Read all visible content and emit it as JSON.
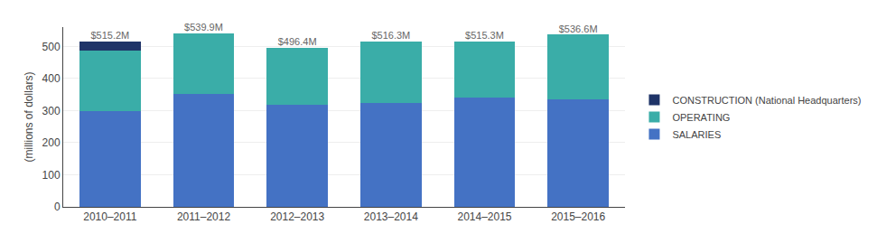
{
  "chart_data": {
    "type": "bar",
    "stacked": true,
    "categories": [
      "2010–2011",
      "2011–2012",
      "2012–2013",
      "2013–2014",
      "2014–2015",
      "2015–2016"
    ],
    "series": [
      {
        "name": "SALARIES",
        "color": "#4472C4",
        "values": [
          297.0,
          353.0,
          318.0,
          323.0,
          341.0,
          336.0
        ]
      },
      {
        "name": "OPERATING",
        "color": "#3AADA8",
        "values": [
          190.2,
          186.9,
          178.4,
          193.3,
          174.3,
          200.6
        ]
      },
      {
        "name": "CONSTRUCTION (National Headquarters)",
        "color": "#1F3468",
        "values": [
          28.0,
          0.0,
          0.0,
          0.0,
          0.0,
          0.0
        ]
      }
    ],
    "totals": [
      515.2,
      539.9,
      496.4,
      516.3,
      515.3,
      536.6
    ],
    "total_labels": [
      "$515.2M",
      "$539.9M",
      "$496.4M",
      "$516.3M",
      "$515.3M",
      "$536.6M"
    ],
    "ylabel": "(millions of dollars)",
    "ylim": [
      0,
      560
    ],
    "yticks": [
      0,
      100,
      200,
      300,
      400,
      500
    ],
    "grid": true,
    "legend": "right"
  }
}
